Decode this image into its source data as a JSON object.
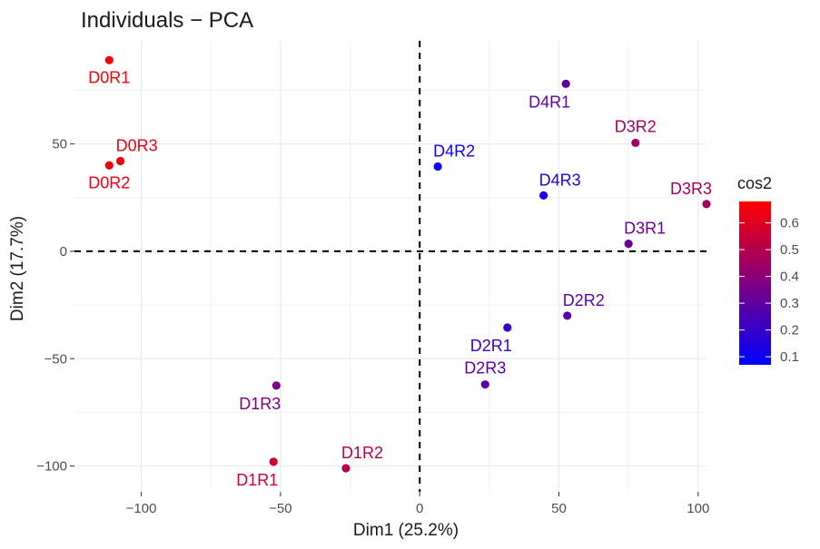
{
  "chart_data": {
    "type": "scatter",
    "title": "Individuals − PCA",
    "xlabel": "Dim1 (25.2%)",
    "ylabel": "Dim2 (17.7%)",
    "xlim": [
      -124,
      103
    ],
    "ylim": [
      -112,
      98
    ],
    "x_ticks": [
      -100,
      -50,
      0,
      50,
      100
    ],
    "x_tick_labels": [
      "−100",
      "−50",
      "0",
      "50",
      "100"
    ],
    "y_ticks": [
      -100,
      -50,
      0,
      50
    ],
    "y_tick_labels": [
      "−100",
      "−50",
      "0",
      "50"
    ],
    "grid": true,
    "reference_lines": {
      "x": 0,
      "y": 0,
      "style": "dashed"
    },
    "legend": {
      "title": "cos2",
      "placement": "right",
      "min": 0.07,
      "max": 0.68,
      "ticks": [
        0.1,
        0.2,
        0.3,
        0.4,
        0.5,
        0.6
      ],
      "low_color": "#0000ff",
      "mid_color": "#800080",
      "high_color": "#ff0000"
    },
    "points": [
      {
        "label": "D0R1",
        "x": -111.5,
        "y": 89.0,
        "cos2": 0.66,
        "label_pos": "below"
      },
      {
        "label": "D0R3",
        "x": -107.5,
        "y": 42.0,
        "cos2": 0.64,
        "label_pos": "above-right"
      },
      {
        "label": "D0R2",
        "x": -111.5,
        "y": 40.0,
        "cos2": 0.64,
        "label_pos": "below"
      },
      {
        "label": "D4R1",
        "x": 52.5,
        "y": 78.0,
        "cos2": 0.3,
        "label_pos": "below-left"
      },
      {
        "label": "D3R2",
        "x": 77.5,
        "y": 50.5,
        "cos2": 0.45,
        "label_pos": "above"
      },
      {
        "label": "D4R2",
        "x": 6.5,
        "y": 39.5,
        "cos2": 0.1,
        "label_pos": "above-right"
      },
      {
        "label": "D4R3",
        "x": 44.5,
        "y": 26.0,
        "cos2": 0.13,
        "label_pos": "above-right"
      },
      {
        "label": "D3R3",
        "x": 103.0,
        "y": 22.0,
        "cos2": 0.46,
        "label_pos": "above-left"
      },
      {
        "label": "D3R1",
        "x": 75.0,
        "y": 3.5,
        "cos2": 0.33,
        "label_pos": "above-right"
      },
      {
        "label": "D2R2",
        "x": 53.0,
        "y": -30.0,
        "cos2": 0.28,
        "label_pos": "above-right"
      },
      {
        "label": "D2R1",
        "x": 31.5,
        "y": -35.5,
        "cos2": 0.2,
        "label_pos": "below-left"
      },
      {
        "label": "D2R3",
        "x": 23.5,
        "y": -62.0,
        "cos2": 0.3,
        "label_pos": "above"
      },
      {
        "label": "D1R3",
        "x": -51.5,
        "y": -62.5,
        "cos2": 0.37,
        "label_pos": "below-left"
      },
      {
        "label": "D1R2",
        "x": -26.5,
        "y": -101.0,
        "cos2": 0.5,
        "label_pos": "above-right"
      },
      {
        "label": "D1R1",
        "x": -52.5,
        "y": -98.0,
        "cos2": 0.58,
        "label_pos": "below-left"
      }
    ]
  }
}
